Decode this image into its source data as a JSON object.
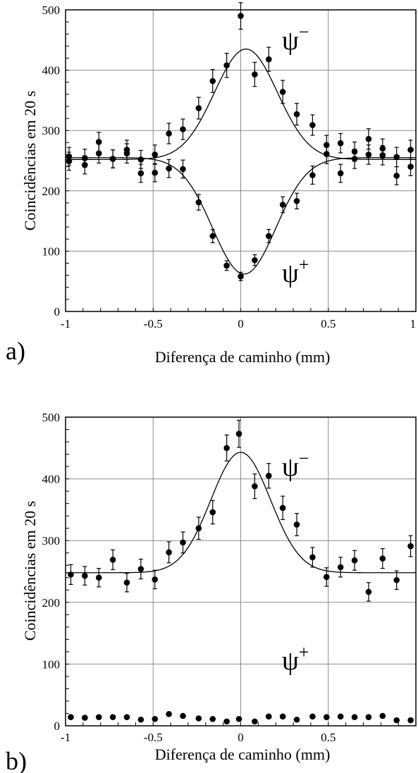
{
  "chart_data": [
    {
      "type": "scatter",
      "panel_label": "a)",
      "xlabel": "Diferença de caminho (mm)",
      "ylabel": "Coincidências em 20 s",
      "xlim": [
        -1,
        1
      ],
      "ylim": [
        0,
        500
      ],
      "xticks": [
        "-1",
        "-0.5",
        "0",
        "0.5",
        "1"
      ],
      "yticks": [
        "0",
        "100",
        "200",
        "300",
        "400",
        "500"
      ],
      "grid": true,
      "annotations": [
        {
          "base": "ψ",
          "sup": "−"
        },
        {
          "base": "ψ",
          "sup": "+"
        }
      ],
      "series": [
        {
          "x": [
            -0.98,
            -0.89,
            -0.81,
            -0.73,
            -0.65,
            -0.57,
            -0.49,
            -0.41,
            -0.33,
            -0.24,
            -0.16,
            -0.08,
            0.0,
            0.08,
            0.16,
            0.24,
            0.32,
            0.41,
            0.49,
            0.57,
            0.65,
            0.73,
            0.81,
            0.89,
            0.97
          ],
          "y": [
            257,
            254,
            262,
            253,
            262,
            252,
            260,
            295,
            302,
            337,
            382,
            408,
            490,
            393,
            418,
            364,
            327,
            309,
            276,
            279,
            265,
            286,
            270,
            256,
            268
          ],
          "err": [
            15,
            15,
            16,
            15,
            16,
            15,
            16,
            17,
            17,
            18,
            19,
            20,
            22,
            20,
            20,
            19,
            18,
            17,
            16,
            16,
            16,
            17,
            16,
            16,
            16
          ]
        },
        {
          "x": [
            -0.98,
            -0.89,
            -0.81,
            -0.73,
            -0.65,
            -0.57,
            -0.49,
            -0.41,
            -0.33,
            -0.24,
            -0.16,
            -0.08,
            0.0,
            0.08,
            0.16,
            0.24,
            0.32,
            0.41,
            0.49,
            0.57,
            0.65,
            0.73,
            0.81,
            0.89,
            0.97
          ],
          "y": [
            249,
            243,
            281,
            253,
            268,
            229,
            230,
            237,
            236,
            181,
            125,
            76,
            58,
            85,
            125,
            177,
            183,
            226,
            261,
            229,
            253,
            260,
            259,
            225,
            240
          ],
          "err": [
            15,
            15,
            16,
            15,
            16,
            15,
            15,
            15,
            15,
            13,
            11,
            8,
            7,
            9,
            11,
            13,
            13,
            15,
            16,
            15,
            16,
            16,
            16,
            15,
            15
          ]
        }
      ],
      "fits": [
        {
          "baseline": 252,
          "amplitude": 183,
          "center": 0.03,
          "sigma": 0.18
        },
        {
          "baseline": 255,
          "amplitude": -193,
          "center": 0.02,
          "sigma": 0.18
        }
      ]
    },
    {
      "type": "scatter",
      "panel_label": "b)",
      "xlabel": "Diferença de caminho (mm)",
      "ylabel": "Coincidências em 20 s",
      "xlim": [
        -1,
        1
      ],
      "ylim": [
        0,
        500
      ],
      "xticks": [
        "-1",
        "-0.5",
        "0",
        "0.5"
      ],
      "yticks": [
        "0",
        "100",
        "200",
        "300",
        "400",
        "500"
      ],
      "grid": true,
      "annotations": [
        {
          "base": "ψ",
          "sup": "−"
        },
        {
          "base": "ψ",
          "sup": "+"
        }
      ],
      "series": [
        {
          "x": [
            -0.97,
            -0.89,
            -0.81,
            -0.73,
            -0.65,
            -0.57,
            -0.49,
            -0.41,
            -0.33,
            -0.24,
            -0.16,
            -0.08,
            -0.01,
            0.08,
            0.16,
            0.24,
            0.32,
            0.41,
            0.49,
            0.57,
            0.65,
            0.73,
            0.81,
            0.89,
            0.97
          ],
          "y": [
            245,
            243,
            240,
            269,
            232,
            254,
            237,
            281,
            297,
            320,
            346,
            450,
            473,
            388,
            405,
            353,
            326,
            273,
            241,
            257,
            268,
            217,
            271,
            236,
            291
          ],
          "err": [
            16,
            15,
            15,
            16,
            15,
            16,
            15,
            17,
            17,
            18,
            19,
            21,
            22,
            20,
            20,
            19,
            18,
            16,
            15,
            16,
            16,
            15,
            16,
            15,
            17
          ]
        },
        {
          "x": [
            -0.97,
            -0.89,
            -0.81,
            -0.73,
            -0.65,
            -0.57,
            -0.49,
            -0.41,
            -0.33,
            -0.24,
            -0.16,
            -0.08,
            -0.01,
            0.08,
            0.16,
            0.24,
            0.32,
            0.41,
            0.49,
            0.57,
            0.65,
            0.73,
            0.81,
            0.89,
            0.97
          ],
          "y": [
            14,
            13,
            14,
            14,
            14,
            10,
            11,
            19,
            16,
            12,
            11,
            7,
            11,
            7,
            15,
            15,
            10,
            15,
            14,
            15,
            14,
            14,
            16,
            9,
            9
          ],
          "err": [
            0,
            0,
            0,
            0,
            0,
            0,
            0,
            0,
            0,
            0,
            0,
            0,
            0,
            0,
            0,
            0,
            0,
            0,
            0,
            0,
            0,
            0,
            0,
            0,
            0
          ]
        }
      ],
      "fits": [
        {
          "baseline": 248,
          "amplitude": 195,
          "center": 0.0,
          "sigma": 0.17
        }
      ]
    }
  ]
}
